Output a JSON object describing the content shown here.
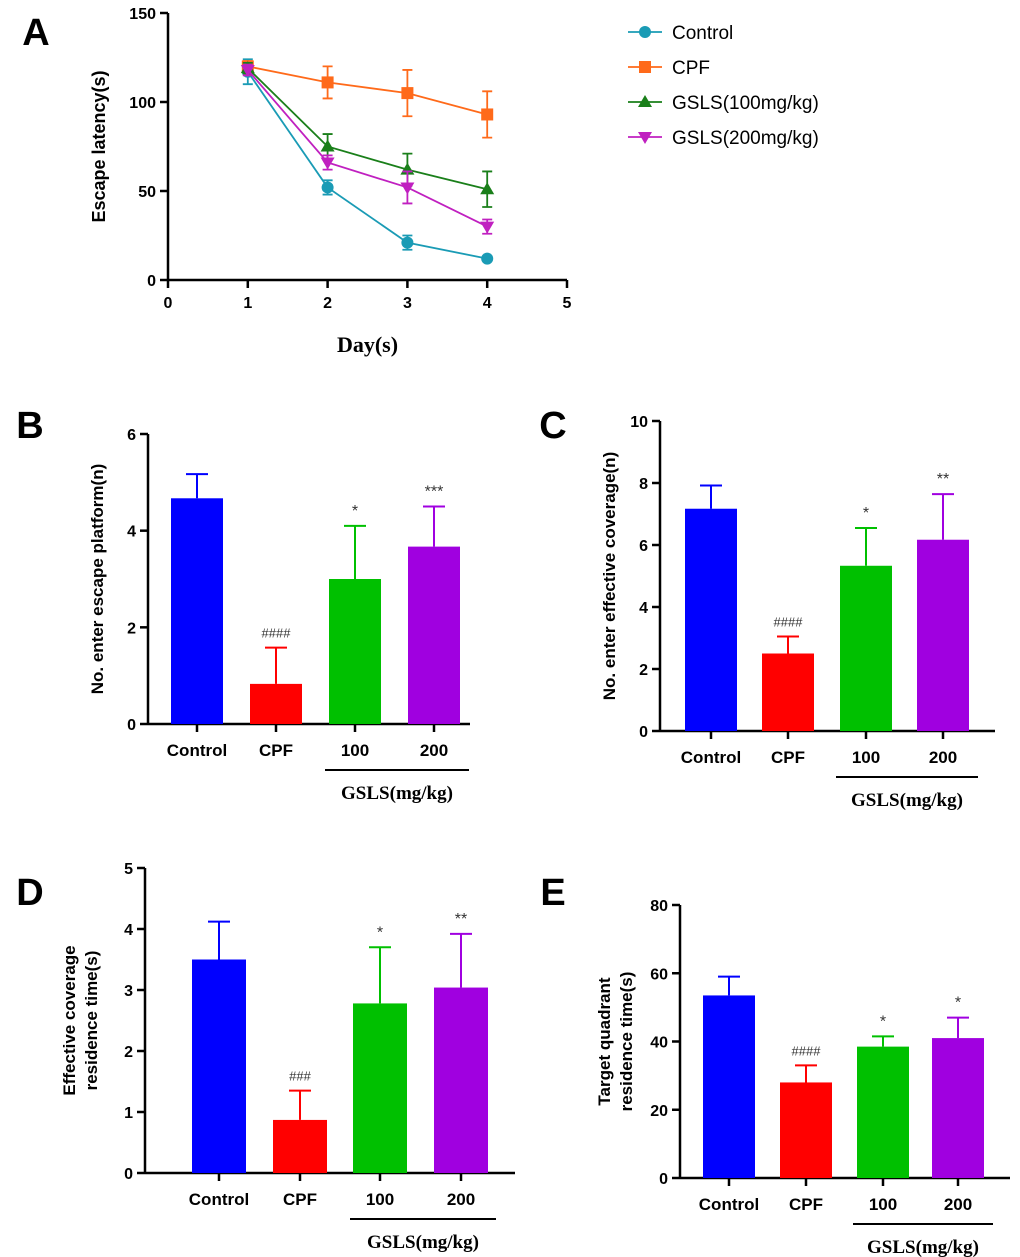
{
  "chart_data": [
    {
      "panel": "A",
      "type": "line",
      "xlabel": "Day(s)",
      "ylabel": "Escape latency(s)",
      "xlim": [
        0,
        5
      ],
      "ylim": [
        0,
        150
      ],
      "xticks": [
        0,
        1,
        2,
        3,
        4,
        5
      ],
      "yticks": [
        0,
        50,
        100,
        150
      ],
      "legend": "top-right",
      "x": [
        1,
        2,
        3,
        4
      ],
      "series": [
        {
          "name": "Control",
          "marker": "circle",
          "color": "#1a9bb5",
          "values": [
            117,
            52,
            21,
            12
          ],
          "errors": [
            7,
            4,
            4,
            1
          ]
        },
        {
          "name": "CPF",
          "marker": "square",
          "color": "#ff6a1a",
          "values": [
            120,
            111,
            105,
            93
          ],
          "errors": [
            3,
            9,
            13,
            13
          ]
        },
        {
          "name": "GSLS(100mg/kg)",
          "marker": "triangle-up",
          "color": "#1a7f1a",
          "values": [
            119,
            75,
            62,
            51
          ],
          "errors": [
            3,
            7,
            9,
            10
          ]
        },
        {
          "name": "GSLS(200mg/kg)",
          "marker": "triangle-down",
          "color": "#c020c0",
          "values": [
            118,
            66,
            52,
            30
          ],
          "errors": [
            3,
            4,
            9,
            4
          ]
        }
      ]
    },
    {
      "panel": "B",
      "type": "bar",
      "ylabel": "No. enter escape platform(n)",
      "categories": [
        "Control",
        "CPF",
        "100",
        "200"
      ],
      "group_label": "GSLS(mg/kg)",
      "ylim": [
        0,
        6
      ],
      "yticks": [
        0,
        2,
        4,
        6
      ],
      "values": [
        4.67,
        0.83,
        3.0,
        3.67
      ],
      "errors": [
        0.5,
        0.75,
        1.1,
        0.83
      ],
      "annotations": [
        "",
        "####",
        "*",
        "***"
      ],
      "colors": [
        "#0000ff",
        "#ff0000",
        "#00c000",
        "#a000e0"
      ]
    },
    {
      "panel": "C",
      "type": "bar",
      "ylabel": "No. enter effective coverage(n)",
      "categories": [
        "Control",
        "CPF",
        "100",
        "200"
      ],
      "group_label": "GSLS(mg/kg)",
      "ylim": [
        0,
        10
      ],
      "yticks": [
        0,
        2,
        4,
        6,
        8,
        10
      ],
      "values": [
        7.17,
        2.5,
        5.33,
        6.17
      ],
      "errors": [
        0.75,
        0.55,
        1.22,
        1.47
      ],
      "annotations": [
        "",
        "####",
        "*",
        "**"
      ],
      "colors": [
        "#0000ff",
        "#ff0000",
        "#00c000",
        "#a000e0"
      ]
    },
    {
      "panel": "D",
      "type": "bar",
      "ylabel": "Effective coverage|residence time(s)",
      "categories": [
        "Control",
        "CPF",
        "100",
        "200"
      ],
      "group_label": "GSLS(mg/kg)",
      "ylim": [
        0,
        5
      ],
      "yticks": [
        0,
        1,
        2,
        3,
        4,
        5
      ],
      "values": [
        3.5,
        0.87,
        2.78,
        3.04
      ],
      "errors": [
        0.62,
        0.48,
        0.92,
        0.88
      ],
      "annotations": [
        "",
        "###",
        "*",
        "**"
      ],
      "colors": [
        "#0000ff",
        "#ff0000",
        "#00c000",
        "#a000e0"
      ]
    },
    {
      "panel": "E",
      "type": "bar",
      "ylabel": "Target quadrant|residence time(s)",
      "categories": [
        "Control",
        "CPF",
        "100",
        "200"
      ],
      "group_label": "GSLS(mg/kg)",
      "ylim": [
        0,
        80
      ],
      "yticks": [
        0,
        20,
        40,
        60,
        80
      ],
      "values": [
        53.5,
        28,
        38.5,
        41
      ],
      "errors": [
        5.5,
        5,
        3,
        6
      ],
      "annotations": [
        "",
        "####",
        "*",
        "*"
      ],
      "colors": [
        "#0000ff",
        "#ff0000",
        "#00c000",
        "#a000e0"
      ]
    }
  ]
}
